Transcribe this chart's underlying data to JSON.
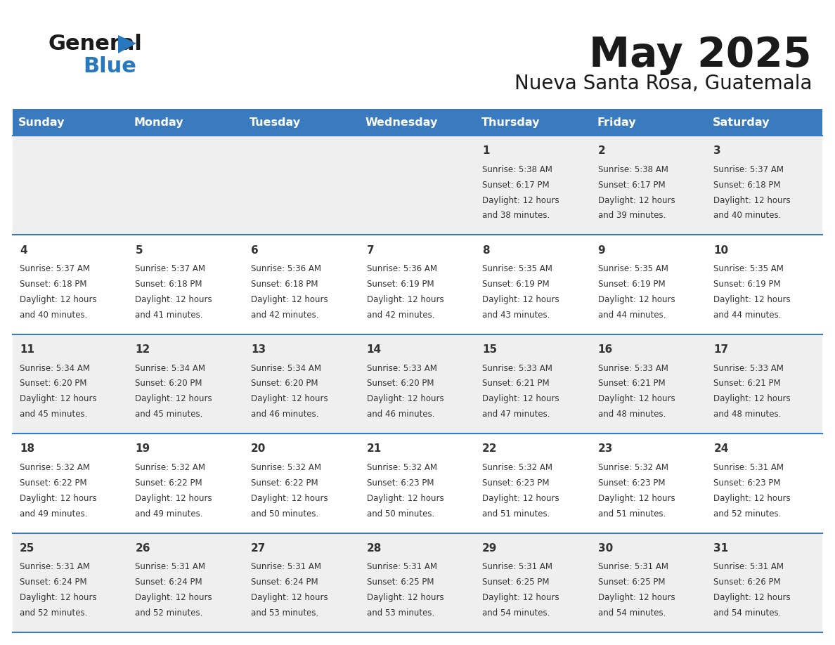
{
  "title": "May 2025",
  "subtitle": "Nueva Santa Rosa, Guatemala",
  "header_bg": "#3a7abf",
  "header_text": "#ffffff",
  "row_bg_odd": "#efefef",
  "row_bg_even": "#ffffff",
  "separator_color": "#3a7abf",
  "text_color": "#333333",
  "day_headers": [
    "Sunday",
    "Monday",
    "Tuesday",
    "Wednesday",
    "Thursday",
    "Friday",
    "Saturday"
  ],
  "calendar_data": [
    [
      null,
      null,
      null,
      null,
      {
        "day": 1,
        "sunrise": "5:38 AM",
        "sunset": "6:17 PM",
        "daylight_h": "12 hours",
        "daylight_m": "and 38 minutes."
      },
      {
        "day": 2,
        "sunrise": "5:38 AM",
        "sunset": "6:17 PM",
        "daylight_h": "12 hours",
        "daylight_m": "and 39 minutes."
      },
      {
        "day": 3,
        "sunrise": "5:37 AM",
        "sunset": "6:18 PM",
        "daylight_h": "12 hours",
        "daylight_m": "and 40 minutes."
      }
    ],
    [
      {
        "day": 4,
        "sunrise": "5:37 AM",
        "sunset": "6:18 PM",
        "daylight_h": "12 hours",
        "daylight_m": "and 40 minutes."
      },
      {
        "day": 5,
        "sunrise": "5:37 AM",
        "sunset": "6:18 PM",
        "daylight_h": "12 hours",
        "daylight_m": "and 41 minutes."
      },
      {
        "day": 6,
        "sunrise": "5:36 AM",
        "sunset": "6:18 PM",
        "daylight_h": "12 hours",
        "daylight_m": "and 42 minutes."
      },
      {
        "day": 7,
        "sunrise": "5:36 AM",
        "sunset": "6:19 PM",
        "daylight_h": "12 hours",
        "daylight_m": "and 42 minutes."
      },
      {
        "day": 8,
        "sunrise": "5:35 AM",
        "sunset": "6:19 PM",
        "daylight_h": "12 hours",
        "daylight_m": "and 43 minutes."
      },
      {
        "day": 9,
        "sunrise": "5:35 AM",
        "sunset": "6:19 PM",
        "daylight_h": "12 hours",
        "daylight_m": "and 44 minutes."
      },
      {
        "day": 10,
        "sunrise": "5:35 AM",
        "sunset": "6:19 PM",
        "daylight_h": "12 hours",
        "daylight_m": "and 44 minutes."
      }
    ],
    [
      {
        "day": 11,
        "sunrise": "5:34 AM",
        "sunset": "6:20 PM",
        "daylight_h": "12 hours",
        "daylight_m": "and 45 minutes."
      },
      {
        "day": 12,
        "sunrise": "5:34 AM",
        "sunset": "6:20 PM",
        "daylight_h": "12 hours",
        "daylight_m": "and 45 minutes."
      },
      {
        "day": 13,
        "sunrise": "5:34 AM",
        "sunset": "6:20 PM",
        "daylight_h": "12 hours",
        "daylight_m": "and 46 minutes."
      },
      {
        "day": 14,
        "sunrise": "5:33 AM",
        "sunset": "6:20 PM",
        "daylight_h": "12 hours",
        "daylight_m": "and 46 minutes."
      },
      {
        "day": 15,
        "sunrise": "5:33 AM",
        "sunset": "6:21 PM",
        "daylight_h": "12 hours",
        "daylight_m": "and 47 minutes."
      },
      {
        "day": 16,
        "sunrise": "5:33 AM",
        "sunset": "6:21 PM",
        "daylight_h": "12 hours",
        "daylight_m": "and 48 minutes."
      },
      {
        "day": 17,
        "sunrise": "5:33 AM",
        "sunset": "6:21 PM",
        "daylight_h": "12 hours",
        "daylight_m": "and 48 minutes."
      }
    ],
    [
      {
        "day": 18,
        "sunrise": "5:32 AM",
        "sunset": "6:22 PM",
        "daylight_h": "12 hours",
        "daylight_m": "and 49 minutes."
      },
      {
        "day": 19,
        "sunrise": "5:32 AM",
        "sunset": "6:22 PM",
        "daylight_h": "12 hours",
        "daylight_m": "and 49 minutes."
      },
      {
        "day": 20,
        "sunrise": "5:32 AM",
        "sunset": "6:22 PM",
        "daylight_h": "12 hours",
        "daylight_m": "and 50 minutes."
      },
      {
        "day": 21,
        "sunrise": "5:32 AM",
        "sunset": "6:23 PM",
        "daylight_h": "12 hours",
        "daylight_m": "and 50 minutes."
      },
      {
        "day": 22,
        "sunrise": "5:32 AM",
        "sunset": "6:23 PM",
        "daylight_h": "12 hours",
        "daylight_m": "and 51 minutes."
      },
      {
        "day": 23,
        "sunrise": "5:32 AM",
        "sunset": "6:23 PM",
        "daylight_h": "12 hours",
        "daylight_m": "and 51 minutes."
      },
      {
        "day": 24,
        "sunrise": "5:31 AM",
        "sunset": "6:23 PM",
        "daylight_h": "12 hours",
        "daylight_m": "and 52 minutes."
      }
    ],
    [
      {
        "day": 25,
        "sunrise": "5:31 AM",
        "sunset": "6:24 PM",
        "daylight_h": "12 hours",
        "daylight_m": "and 52 minutes."
      },
      {
        "day": 26,
        "sunrise": "5:31 AM",
        "sunset": "6:24 PM",
        "daylight_h": "12 hours",
        "daylight_m": "and 52 minutes."
      },
      {
        "day": 27,
        "sunrise": "5:31 AM",
        "sunset": "6:24 PM",
        "daylight_h": "12 hours",
        "daylight_m": "and 53 minutes."
      },
      {
        "day": 28,
        "sunrise": "5:31 AM",
        "sunset": "6:25 PM",
        "daylight_h": "12 hours",
        "daylight_m": "and 53 minutes."
      },
      {
        "day": 29,
        "sunrise": "5:31 AM",
        "sunset": "6:25 PM",
        "daylight_h": "12 hours",
        "daylight_m": "and 54 minutes."
      },
      {
        "day": 30,
        "sunrise": "5:31 AM",
        "sunset": "6:25 PM",
        "daylight_h": "12 hours",
        "daylight_m": "and 54 minutes."
      },
      {
        "day": 31,
        "sunrise": "5:31 AM",
        "sunset": "6:26 PM",
        "daylight_h": "12 hours",
        "daylight_m": "and 54 minutes."
      }
    ]
  ]
}
